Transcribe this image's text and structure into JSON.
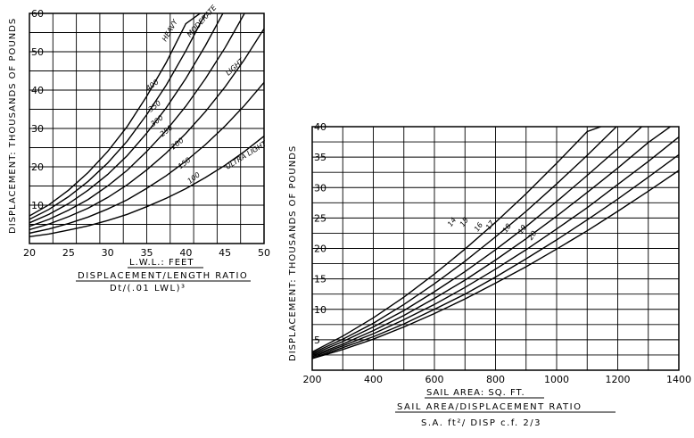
{
  "chart_data": [
    {
      "type": "line",
      "title": "",
      "xlabel": "L.W.L.: FEET",
      "ylabel": "DISPLACEMENT: THOUSANDS OF POUNDS",
      "subtitle_line1": "DISPLACEMENT/LENGTH RATIO",
      "subtitle_line2": "Dt/(.01 LWL)³",
      "xlim": [
        20,
        50
      ],
      "ylim": [
        0,
        60
      ],
      "x_ticks": [
        "20",
        "25",
        "30",
        "35",
        "40",
        "45",
        "50"
      ],
      "y_ticks": [
        "10",
        "20",
        "30",
        "40",
        "50",
        "60"
      ],
      "grid": true,
      "series_x": [
        20,
        22.5,
        25,
        27.5,
        30,
        32.5,
        35,
        37.5,
        40,
        42.5,
        45,
        47.5,
        50
      ],
      "series": [
        {
          "name": "100",
          "values": [
            1.8,
            2.5,
            3.5,
            4.6,
            6.0,
            7.6,
            9.6,
            11.8,
            14.3,
            17.2,
            20.4,
            24.0,
            28.0
          ]
        },
        {
          "name": "150",
          "values": [
            2.7,
            3.8,
            5.2,
            6.9,
            9.0,
            11.4,
            14.4,
            17.7,
            21.5,
            25.8,
            30.6,
            36.0,
            42.0
          ]
        },
        {
          "name": "200",
          "values": [
            3.6,
            5.1,
            7.0,
            9.2,
            12.0,
            15.3,
            19.2,
            23.6,
            28.7,
            34.4,
            40.8,
            48.0,
            56.0
          ]
        },
        {
          "name": "250",
          "values": [
            4.5,
            6.3,
            8.7,
            11.5,
            15.0,
            19.1,
            24.0,
            29.5,
            35.8,
            43.0,
            51.0,
            60.0
          ]
        },
        {
          "name": "300",
          "values": [
            5.4,
            7.6,
            10.4,
            13.9,
            18.0,
            22.9,
            28.8,
            35.4,
            43.0,
            51.6,
            61.0
          ]
        },
        {
          "name": "350",
          "values": [
            6.3,
            8.9,
            12.2,
            16.2,
            21.0,
            26.7,
            33.6,
            41.3,
            50.2,
            60.0
          ]
        },
        {
          "name": "400",
          "values": [
            7.2,
            10.1,
            13.9,
            18.5,
            24.0,
            30.5,
            38.4,
            47.2,
            57.3,
            61.0
          ]
        }
      ],
      "region_labels": [
        "HEAVY",
        "MODERATE",
        "LIGHT",
        "ULTRA LIGHT"
      ]
    },
    {
      "type": "line",
      "title": "",
      "xlabel": "SAIL AREA: SQ. FT.",
      "ylabel": "DISPLACEMENT: THOUSANDS OF POUNDS",
      "subtitle_line1": "SAIL AREA/DISPLACEMENT RATIO",
      "subtitle_line2": "S.A. ft²/ DISP c.f. 2/3",
      "xlim": [
        200,
        1400
      ],
      "ylim": [
        0,
        40
      ],
      "x_ticks": [
        "200",
        "400",
        "600",
        "800",
        "1000",
        "1200",
        "1400"
      ],
      "y_ticks": [
        "5",
        "10",
        "15",
        "20",
        "25",
        "30",
        "35",
        "40"
      ],
      "grid": true,
      "series_x": [
        200,
        300,
        400,
        500,
        600,
        700,
        800,
        900,
        1000,
        1100,
        1200,
        1300,
        1400
      ],
      "series": [
        {
          "name": "14",
          "values": [
            3.0,
            5.6,
            8.6,
            12.0,
            15.8,
            19.9,
            24.3,
            29.0,
            34.0,
            39.2,
            41.0
          ]
        },
        {
          "name": "15",
          "values": [
            2.8,
            5.1,
            7.7,
            10.8,
            14.2,
            17.9,
            21.9,
            26.1,
            30.6,
            35.3,
            40.2
          ]
        },
        {
          "name": "16",
          "values": [
            2.6,
            4.7,
            7.1,
            9.8,
            12.9,
            16.2,
            19.8,
            23.6,
            27.7,
            32.0,
            36.4,
            41.0
          ]
        },
        {
          "name": "17",
          "values": [
            2.4,
            4.3,
            6.5,
            9.0,
            11.8,
            14.8,
            18.1,
            21.6,
            25.3,
            29.2,
            33.2,
            37.4,
            41.0
          ]
        },
        {
          "name": "18",
          "values": [
            2.2,
            4.0,
            6.0,
            8.3,
            10.8,
            13.6,
            16.6,
            19.8,
            23.2,
            26.7,
            30.5,
            34.3,
            38.3
          ]
        },
        {
          "name": "19",
          "values": [
            2.0,
            3.7,
            5.5,
            7.6,
            10.0,
            12.5,
            15.3,
            18.3,
            21.4,
            24.7,
            28.1,
            31.7,
            35.4
          ]
        },
        {
          "name": "20",
          "values": [
            1.9,
            3.4,
            5.1,
            7.1,
            9.3,
            11.7,
            14.3,
            17.0,
            19.9,
            22.9,
            26.1,
            29.4,
            32.8
          ]
        }
      ]
    }
  ]
}
